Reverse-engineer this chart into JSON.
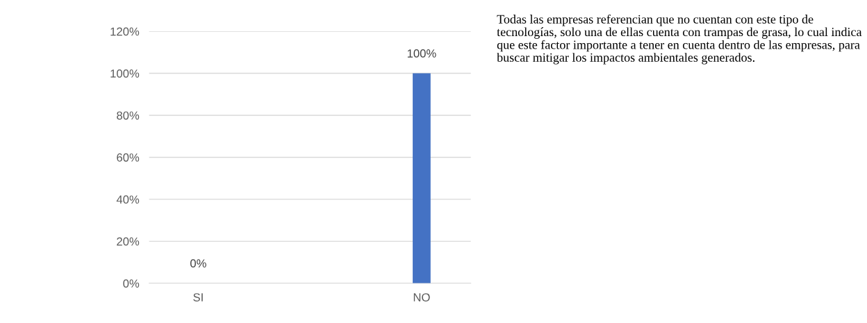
{
  "chart_data": {
    "type": "bar",
    "categories": [
      "SI",
      "NO"
    ],
    "values": [
      0,
      100
    ],
    "value_labels": [
      "0%",
      "100%"
    ],
    "color": "#4472c4",
    "ylim": [
      0,
      120
    ],
    "yticks": [
      {
        "value": 0,
        "label": "0%"
      },
      {
        "value": 20,
        "label": "20%"
      },
      {
        "value": 40,
        "label": "40%"
      },
      {
        "value": 60,
        "label": "60%"
      },
      {
        "value": 80,
        "label": "80%"
      },
      {
        "value": 100,
        "label": "100%"
      },
      {
        "value": 120,
        "label": "120%"
      }
    ],
    "grid": "y",
    "annotations": [
      "Todas las empresas referencian que no cuentan con este tipo de tecnologías, solo una de ellas cuenta con trampas de grasa, lo cual indica que este factor importante a tener en cuenta dentro de las empresas, para buscar mitigar los impactos ambientales generados."
    ]
  }
}
